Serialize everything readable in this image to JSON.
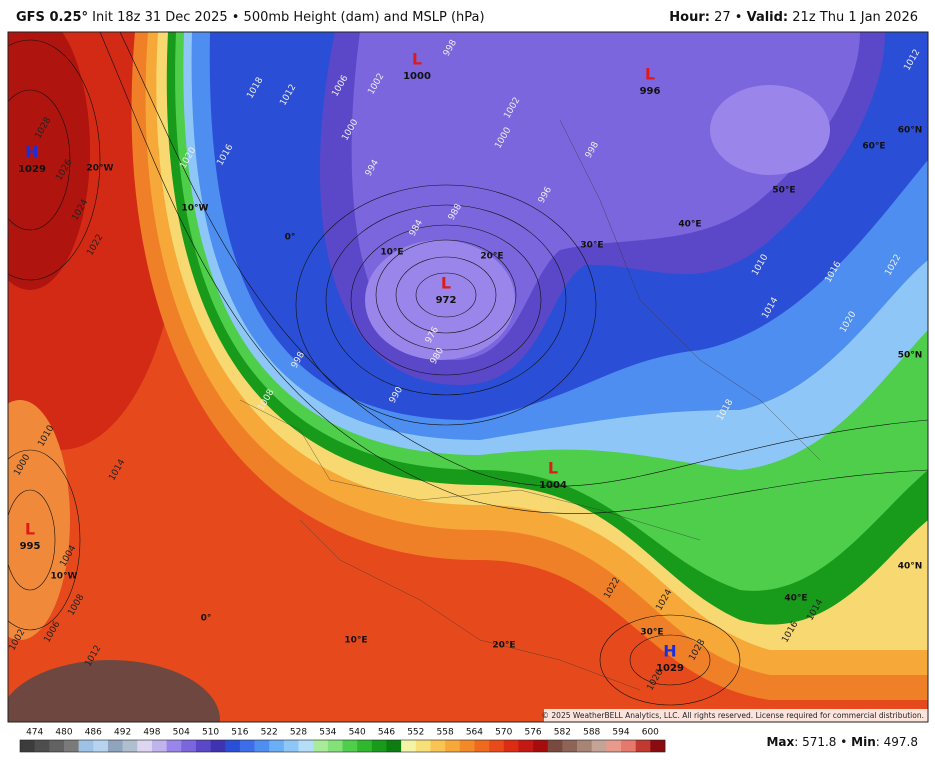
{
  "header": {
    "model": "GFS 0.25°",
    "description": "Init 18z 31 Dec 2025 • 500mb Height (dam) and MSLP (hPa)",
    "hour_label": "Hour:",
    "hour": "27 •",
    "valid_label": "Valid:",
    "valid": "21z Thu 1 Jan 2026"
  },
  "map": {
    "pressure_centers": [
      {
        "letter": "L",
        "value": "1000"
      },
      {
        "letter": "L",
        "value": "996"
      },
      {
        "letter": "L",
        "value": "972"
      },
      {
        "letter": "L",
        "value": "1004"
      },
      {
        "letter": "H",
        "value": "1029"
      },
      {
        "letter": "L",
        "value": "995"
      },
      {
        "letter": "H",
        "value": "1029"
      }
    ],
    "isobar_labels": [
      "998",
      "1002",
      "1006",
      "1018",
      "1012",
      "1000",
      "994",
      "988",
      "984",
      "996",
      "998",
      "1000",
      "1002",
      "976",
      "980",
      "990",
      "998",
      "1008",
      "1010",
      "1014",
      "1000",
      "1004",
      "1008",
      "1006",
      "1002",
      "1012",
      "1022",
      "1024",
      "1026",
      "1028",
      "1016",
      "1020",
      "1010",
      "1016",
      "1014",
      "1020",
      "1022",
      "1012",
      "1018",
      "1022",
      "1024",
      "1028",
      "1026",
      "1016",
      "1014"
    ],
    "geo_labels": [
      "20°W",
      "10°W",
      "0°",
      "10°E",
      "20°E",
      "30°E",
      "40°E",
      "50°E",
      "60°E",
      "60°N",
      "50°N",
      "40°N",
      "10°W",
      "0°",
      "10°E",
      "20°E",
      "30°E",
      "40°E"
    ],
    "copyright": "© 2025 WeatherBELL Analytics, LLC. All rights reserved. License required for commercial distribution."
  },
  "colorbar": {
    "labels": [
      474,
      480,
      486,
      492,
      498,
      504,
      510,
      516,
      522,
      528,
      534,
      540,
      546,
      552,
      558,
      564,
      570,
      576,
      582,
      588,
      594,
      600
    ],
    "colors": [
      "#3c3c3c",
      "#4e4e4e",
      "#626262",
      "#7a7a7a",
      "#9ec2e6",
      "#b6d4ef",
      "#8fa5bf",
      "#b0bfd0",
      "#ddd6f2",
      "#bfb4ec",
      "#9a86ea",
      "#7b66de",
      "#5b48c9",
      "#3f33b0",
      "#2a4fd6",
      "#3b6ee8",
      "#4e8ef0",
      "#6aaef5",
      "#8ec7f7",
      "#b4ddf8",
      "#a8ec9a",
      "#84e078",
      "#4ece4a",
      "#2fb82e",
      "#189a1a",
      "#0c7d10",
      "#f4f4a6",
      "#f8e078",
      "#f8c454",
      "#f6a838",
      "#f28a28",
      "#ee6a1e",
      "#e84a1a",
      "#dc2c14",
      "#c41812",
      "#a60c0c",
      "#7a4a40",
      "#8e6458",
      "#a88474",
      "#c4a496",
      "#e89a8c",
      "#e6786c",
      "#c03a30",
      "#8a0c10"
    ]
  },
  "stats": {
    "max_label": "Max",
    "max_value": ": 571.8 •",
    "min_label": "Min",
    "min_value": ": 497.8"
  }
}
